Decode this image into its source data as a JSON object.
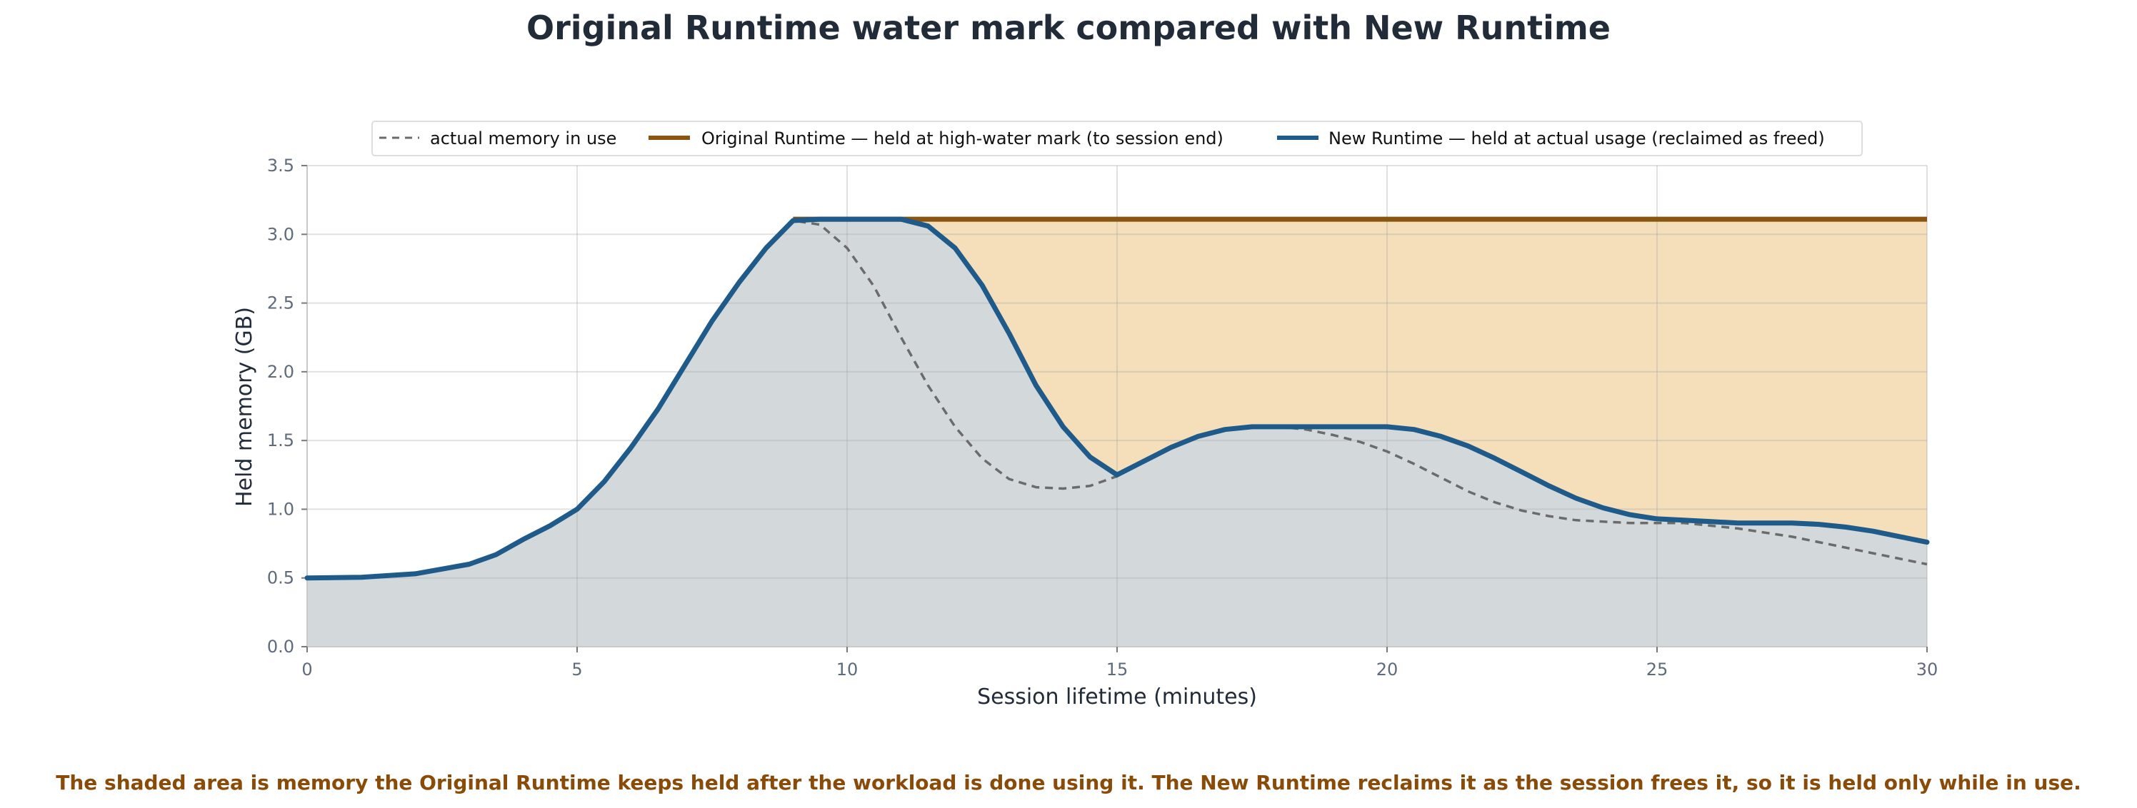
{
  "chart_data": {
    "type": "line",
    "title": "Original Runtime water mark compared with New Runtime",
    "xlabel": "Session lifetime (minutes)",
    "ylabel": "Held memory (GB)",
    "xlim": [
      0,
      30
    ],
    "ylim": [
      0,
      3.5
    ],
    "x_ticks": [
      0,
      5,
      10,
      15,
      20,
      25,
      30
    ],
    "y_ticks": [
      0.0,
      0.5,
      1.0,
      1.5,
      2.0,
      2.5,
      3.0,
      3.5
    ],
    "x_tick_labels": [
      "0",
      "5",
      "10",
      "15",
      "20",
      "25",
      "30"
    ],
    "y_tick_labels": [
      "0.0",
      "0.5",
      "1.0",
      "1.5",
      "2.0",
      "2.5",
      "3.0",
      "3.5"
    ],
    "grid": true,
    "legend_position": "top-center",
    "series": [
      {
        "name": "actual memory in use",
        "style": "dashed",
        "color": "#6b6b6b",
        "x": [
          0,
          1,
          2,
          3,
          3.5,
          4,
          4.5,
          5,
          5.5,
          6,
          6.5,
          7,
          7.5,
          8,
          8.5,
          9,
          9.5,
          10,
          10.5,
          11,
          11.5,
          12,
          12.5,
          13,
          13.5,
          14,
          14.5,
          15,
          15.5,
          16,
          16.5,
          17,
          17.5,
          18,
          18.5,
          19,
          19.5,
          20,
          20.5,
          21,
          21.5,
          22,
          22.5,
          23,
          23.5,
          24,
          24.5,
          25,
          25.5,
          26,
          26.5,
          27,
          27.5,
          28,
          28.5,
          29,
          29.5,
          30
        ],
        "values": [
          0.5,
          0.505,
          0.53,
          0.6,
          0.67,
          0.78,
          0.88,
          1.0,
          1.2,
          1.45,
          1.73,
          2.05,
          2.37,
          2.65,
          2.9,
          3.1,
          3.07,
          2.9,
          2.62,
          2.25,
          1.9,
          1.6,
          1.37,
          1.22,
          1.16,
          1.15,
          1.17,
          1.24,
          1.35,
          1.45,
          1.53,
          1.58,
          1.6,
          1.6,
          1.58,
          1.54,
          1.49,
          1.42,
          1.33,
          1.23,
          1.13,
          1.05,
          0.99,
          0.95,
          0.92,
          0.91,
          0.9,
          0.9,
          0.9,
          0.88,
          0.86,
          0.83,
          0.8,
          0.76,
          0.72,
          0.68,
          0.64,
          0.6
        ]
      },
      {
        "name": "Original Runtime — held at high-water mark (to session end)",
        "style": "solid",
        "color": "#8a5511",
        "x": [
          9,
          30
        ],
        "values": [
          3.11,
          3.11
        ]
      },
      {
        "name": "New Runtime — held at actual usage (reclaimed as freed)",
        "style": "solid",
        "color": "#1e5a8a",
        "x": [
          0,
          1,
          2,
          3,
          3.5,
          4,
          4.5,
          5,
          5.5,
          6,
          6.5,
          7,
          7.5,
          8,
          8.5,
          9,
          9.5,
          10,
          10.5,
          11,
          11.5,
          12,
          12.5,
          13,
          13.5,
          14,
          14.5,
          15,
          15.5,
          16,
          16.5,
          17,
          17.5,
          18,
          18.5,
          19,
          19.5,
          20,
          20.5,
          21,
          21.5,
          22,
          22.5,
          23,
          23.5,
          24,
          24.5,
          25,
          25.5,
          26,
          26.5,
          27,
          27.5,
          28,
          28.5,
          29,
          29.5,
          30
        ],
        "values": [
          0.5,
          0.505,
          0.53,
          0.6,
          0.67,
          0.78,
          0.88,
          1.0,
          1.2,
          1.45,
          1.73,
          2.05,
          2.37,
          2.65,
          2.9,
          3.1,
          3.11,
          3.11,
          3.11,
          3.11,
          3.06,
          2.9,
          2.63,
          2.28,
          1.9,
          1.6,
          1.38,
          1.25,
          1.35,
          1.45,
          1.53,
          1.58,
          1.6,
          1.6,
          1.6,
          1.6,
          1.6,
          1.6,
          1.58,
          1.53,
          1.46,
          1.37,
          1.27,
          1.17,
          1.08,
          1.01,
          0.96,
          0.93,
          0.92,
          0.91,
          0.9,
          0.9,
          0.9,
          0.89,
          0.87,
          0.84,
          0.8,
          0.76
        ]
      }
    ],
    "shaded_regions": [
      {
        "between": "Original Runtime and New Runtime",
        "color": "#f5deba"
      },
      {
        "between": "New Runtime and zero",
        "color": "#d3d9db"
      }
    ],
    "annotation": "The shaded area is memory the Original Runtime keeps held after the workload is done using it. The New Runtime reclaims it as the session frees it, so it is held only while in use."
  }
}
